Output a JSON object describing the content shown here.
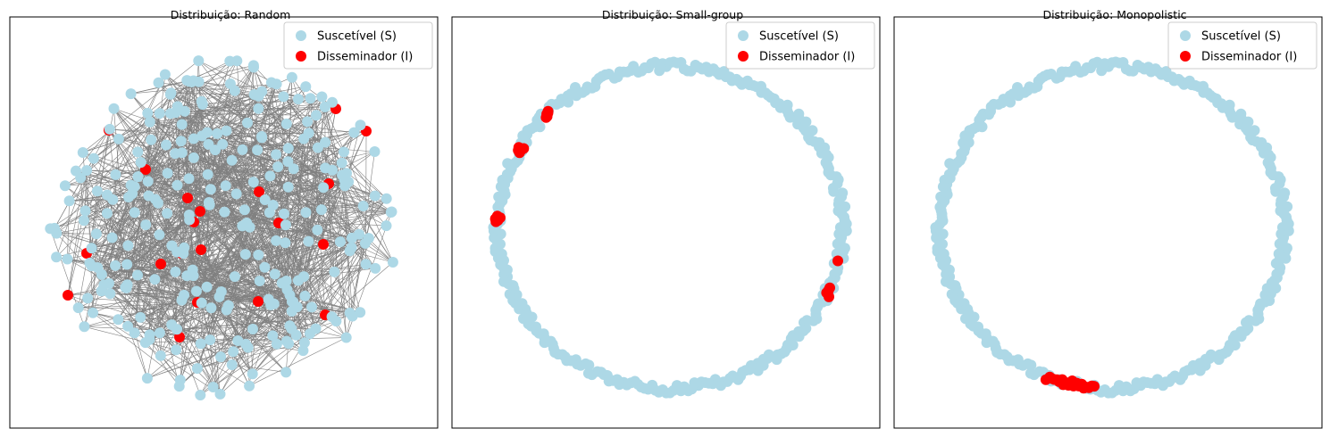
{
  "figure": {
    "panels": [
      {
        "id": "random",
        "title": "Distribuição: Random",
        "layout": "random-network",
        "node_count": 300,
        "infected_count": 20
      },
      {
        "id": "small-group",
        "title": "Distribuição: Small-group",
        "layout": "circle",
        "node_count": 300,
        "infected_count": 20
      },
      {
        "id": "monopolistic",
        "title": "Distribuição: Monopolistic",
        "layout": "circle",
        "node_count": 300,
        "infected_count": 20
      }
    ],
    "legend": [
      {
        "label": "Suscetível (S)",
        "color": "#ADD8E6"
      },
      {
        "label": "Disseminador (I)",
        "color": "#FF0000"
      }
    ],
    "edge_color": "#808080",
    "legend_position": "top-right"
  }
}
